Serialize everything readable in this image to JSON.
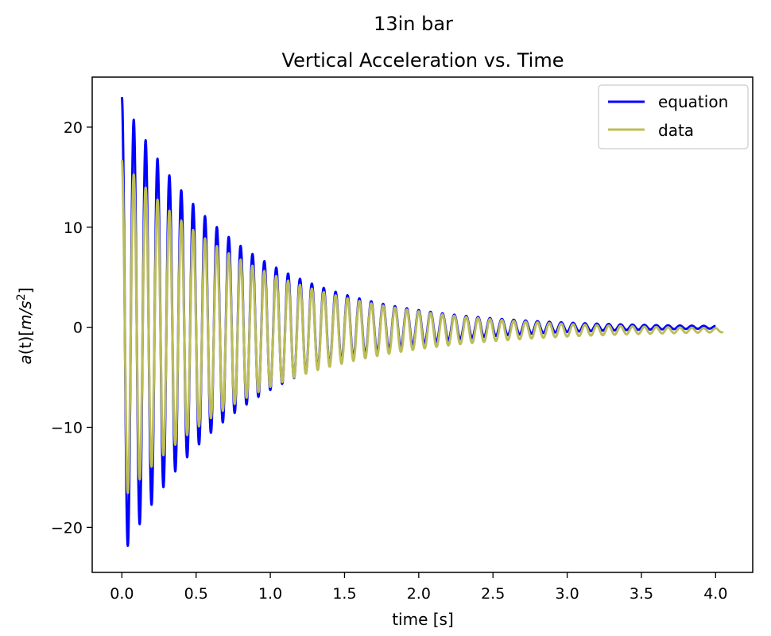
{
  "chart_data": {
    "type": "line",
    "suptitle": "13in bar",
    "title": "Vertical Acceleration vs. Time",
    "xlabel": "time [s]",
    "ylabel": "a(t)[m/s²]",
    "ylabel_parts": {
      "pre": "a",
      "mid1": "(t)[",
      "m": "m",
      "slash": "/",
      "s": "s",
      "exp": "2",
      "post": "]"
    },
    "xlim": [
      -0.2,
      4.25
    ],
    "ylim": [
      -24.5,
      25.0
    ],
    "xticks": [
      0.0,
      0.5,
      1.0,
      1.5,
      2.0,
      2.5,
      3.0,
      3.5,
      4.0
    ],
    "xtick_labels": [
      "0.0",
      "0.5",
      "1.0",
      "1.5",
      "2.0",
      "2.5",
      "3.0",
      "3.5",
      "4.0"
    ],
    "yticks": [
      -20,
      -10,
      0,
      10,
      20
    ],
    "ytick_labels": [
      "−20",
      "−10",
      "0",
      "10",
      "20"
    ],
    "grid": false,
    "legend_position": "top-right",
    "series": [
      {
        "name": "equation",
        "color": "#0000ff",
        "model": {
          "amplitude": 23.0,
          "decay": 1.3,
          "frequency": 12.5,
          "t_start": 0.0,
          "t_end": 4.0
        },
        "peak_points": [
          [
            0.0,
            23.0
          ],
          [
            0.03,
            -21.6
          ],
          [
            0.08,
            20.7
          ],
          [
            0.12,
            -20.0
          ],
          [
            0.16,
            18.7
          ],
          [
            0.28,
            15.3
          ],
          [
            0.4,
            13.5
          ],
          [
            0.5,
            11.0
          ],
          [
            0.6,
            9.0
          ],
          [
            0.8,
            6.4
          ],
          [
            1.0,
            4.6
          ],
          [
            1.5,
            2.0
          ],
          [
            2.0,
            0.9
          ],
          [
            2.5,
            0.5
          ],
          [
            3.0,
            0.3
          ],
          [
            4.0,
            0.1
          ]
        ]
      },
      {
        "name": "data",
        "color": "#bcbd5a",
        "model": {
          "amplitude": 17.0,
          "decay": 1.1,
          "frequency": 12.5,
          "offset": -0.3,
          "t_start": 0.0,
          "t_end": 4.05
        },
        "peak_points": [
          [
            0.0,
            16.0
          ],
          [
            0.05,
            -17.0
          ],
          [
            0.1,
            -22.5
          ],
          [
            0.15,
            15.2
          ],
          [
            0.2,
            -17.8
          ],
          [
            0.28,
            14.3
          ],
          [
            0.4,
            12.0
          ],
          [
            0.6,
            9.5
          ],
          [
            1.0,
            5.5
          ],
          [
            1.5,
            2.5
          ],
          [
            2.0,
            1.0
          ],
          [
            2.5,
            0.5
          ],
          [
            3.0,
            0.2
          ],
          [
            4.05,
            -0.3
          ]
        ]
      }
    ]
  }
}
